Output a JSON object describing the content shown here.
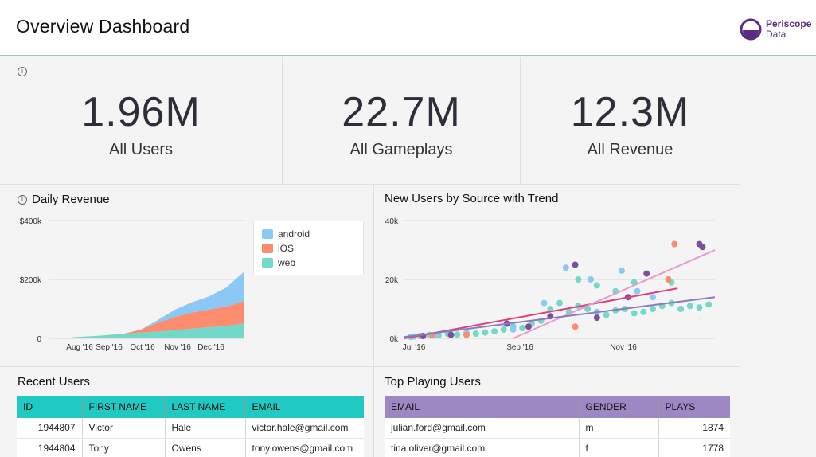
{
  "header": {
    "title": "Overview Dashboard",
    "logo_line1": "Periscope",
    "logo_line2": "Data",
    "brand_color": "#5b2a86"
  },
  "kpis": [
    {
      "value": "1.96M",
      "label": "All Users"
    },
    {
      "value": "22.7M",
      "label": "All Gameplays"
    },
    {
      "value": "12.3M",
      "label": "All Revenue"
    }
  ],
  "daily_revenue": {
    "title": "Daily Revenue",
    "legend": [
      {
        "name": "android",
        "color": "#8cc8f5"
      },
      {
        "name": "iOS",
        "color": "#fb8c6e"
      },
      {
        "name": "web",
        "color": "#72d8c8"
      }
    ]
  },
  "new_users": {
    "title": "New Users by Source with Trend"
  },
  "recent_users": {
    "title": "Recent Users",
    "columns": [
      "ID",
      "FIRST NAME",
      "LAST NAME",
      "EMAIL"
    ],
    "rows": [
      [
        "1944807",
        "Victor",
        "Hale",
        "victor.hale@gmail.com"
      ],
      [
        "1944804",
        "Tony",
        "Owens",
        "tony.owens@gmail.com"
      ]
    ]
  },
  "top_playing": {
    "title": "Top Playing Users",
    "columns": [
      "EMAIL",
      "GENDER",
      "PLAYS"
    ],
    "rows": [
      [
        "julian.ford@gmail.com",
        "m",
        "1874"
      ],
      [
        "tina.oliver@gmail.com",
        "f",
        "1778"
      ]
    ]
  },
  "chart_data": [
    {
      "type": "area",
      "title": "Daily Revenue",
      "stacked": true,
      "x_ticks": [
        "Aug '16",
        "Sep '16",
        "Oct '16",
        "Nov '16",
        "Dec '16"
      ],
      "y_ticks": [
        "0",
        "$200k",
        "$400k"
      ],
      "ylim": [
        0,
        400000
      ],
      "x": [
        0,
        0.1,
        0.2,
        0.3,
        0.4,
        0.5,
        0.6,
        0.7,
        0.8,
        0.9,
        1.0
      ],
      "series": [
        {
          "name": "web",
          "values": [
            4000,
            7000,
            11000,
            16000,
            20000,
            23000,
            28000,
            33000,
            38000,
            43000,
            50000
          ]
        },
        {
          "name": "iOS",
          "values": [
            0,
            0,
            0,
            0,
            10000,
            30000,
            45000,
            55000,
            60000,
            65000,
            75000
          ]
        },
        {
          "name": "android",
          "values": [
            0,
            0,
            0,
            0,
            0,
            10000,
            25000,
            35000,
            45000,
            65000,
            100000
          ]
        }
      ],
      "legend": "top-right",
      "grid": true
    },
    {
      "type": "scatter",
      "title": "New Users by Source with Trend",
      "x_ticks": [
        "Jul '16",
        "Sep '16",
        "Nov '16"
      ],
      "y_ticks": [
        "0k",
        "20k",
        "40k"
      ],
      "ylim": [
        0,
        40000
      ],
      "series": [
        {
          "color": "#72d8c8",
          "points": [
            [
              0.02,
              500
            ],
            [
              0.05,
              800
            ],
            [
              0.08,
              1200
            ],
            [
              0.11,
              1000
            ],
            [
              0.14,
              1500
            ],
            [
              0.17,
              1300
            ],
            [
              0.2,
              1800
            ],
            [
              0.23,
              1600
            ],
            [
              0.26,
              2000
            ],
            [
              0.29,
              2400
            ],
            [
              0.32,
              3000
            ],
            [
              0.35,
              4000
            ],
            [
              0.38,
              3500
            ],
            [
              0.41,
              5000
            ],
            [
              0.44,
              6000
            ],
            [
              0.47,
              10000
            ],
            [
              0.5,
              12000
            ],
            [
              0.53,
              9000
            ],
            [
              0.56,
              11000
            ],
            [
              0.59,
              10000
            ],
            [
              0.62,
              9000
            ],
            [
              0.65,
              8000
            ],
            [
              0.68,
              9500
            ],
            [
              0.71,
              10000
            ],
            [
              0.74,
              8500
            ],
            [
              0.77,
              9000
            ],
            [
              0.8,
              10000
            ],
            [
              0.83,
              11000
            ],
            [
              0.86,
              12000
            ],
            [
              0.89,
              10000
            ],
            [
              0.92,
              11000
            ],
            [
              0.95,
              10500
            ],
            [
              0.98,
              11500
            ],
            [
              0.56,
              20000
            ],
            [
              0.62,
              18000
            ],
            [
              0.68,
              16000
            ],
            [
              0.74,
              19000
            ],
            [
              0.86,
              19000
            ]
          ]
        },
        {
          "color": "#8cc8f5",
          "points": [
            [
              0.03,
              600
            ],
            [
              0.1,
              1000
            ],
            [
              0.2,
              1500
            ],
            [
              0.35,
              3000
            ],
            [
              0.45,
              12000
            ],
            [
              0.52,
              24000
            ],
            [
              0.6,
              20000
            ],
            [
              0.7,
              23000
            ],
            [
              0.75,
              16000
            ],
            [
              0.8,
              14000
            ]
          ]
        },
        {
          "color": "#7d4ea0",
          "points": [
            [
              0.06,
              800
            ],
            [
              0.15,
              1200
            ],
            [
              0.33,
              5000
            ],
            [
              0.4,
              4000
            ],
            [
              0.47,
              7500
            ],
            [
              0.55,
              25000
            ],
            [
              0.62,
              7000
            ],
            [
              0.72,
              14000
            ],
            [
              0.78,
              22000
            ],
            [
              0.95,
              32000
            ],
            [
              0.96,
              31000
            ]
          ]
        },
        {
          "color": "#fb8c6e",
          "points": [
            [
              0.09,
              1000
            ],
            [
              0.2,
              1200
            ],
            [
              0.55,
              4000
            ],
            [
              0.85,
              20000
            ],
            [
              0.87,
              32000
            ]
          ]
        }
      ],
      "trends": [
        {
          "color": "#e0407a",
          "from": [
            0.0,
            0
          ],
          "to": [
            0.88,
            17000
          ]
        },
        {
          "color": "#e89ad0",
          "from": [
            0.35,
            0
          ],
          "to": [
            1.0,
            30000
          ]
        },
        {
          "color": "#8c78c0",
          "from": [
            0.0,
            500
          ],
          "to": [
            1.0,
            14000
          ]
        }
      ],
      "grid": true
    }
  ]
}
